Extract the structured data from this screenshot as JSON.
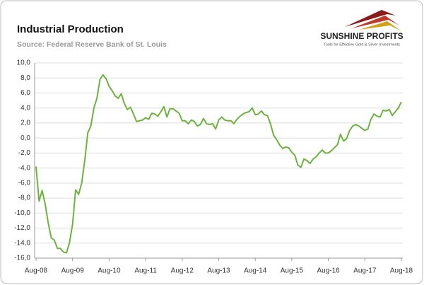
{
  "chart_data": {
    "type": "line",
    "title": "Industrial Production",
    "subtitle": "Source: Federal Reserve Bank of St. Louis",
    "categories": [
      "Aug-08",
      null,
      null,
      null,
      null,
      null,
      null,
      null,
      null,
      null,
      null,
      null,
      "Aug-09",
      null,
      null,
      null,
      null,
      null,
      null,
      null,
      null,
      null,
      null,
      null,
      "Aug-10",
      null,
      null,
      null,
      null,
      null,
      null,
      null,
      null,
      null,
      null,
      null,
      "Aug-11",
      null,
      null,
      null,
      null,
      null,
      null,
      null,
      null,
      null,
      null,
      null,
      "Aug-12",
      null,
      null,
      null,
      null,
      null,
      null,
      null,
      null,
      null,
      null,
      null,
      "Aug-13",
      null,
      null,
      null,
      null,
      null,
      null,
      null,
      null,
      null,
      null,
      null,
      "Aug-14",
      null,
      null,
      null,
      null,
      null,
      null,
      null,
      null,
      null,
      null,
      null,
      "Aug-15",
      null,
      null,
      null,
      null,
      null,
      null,
      null,
      null,
      null,
      null,
      null,
      "Aug-16",
      null,
      null,
      null,
      null,
      null,
      null,
      null,
      null,
      null,
      null,
      null,
      "Aug-17",
      null,
      null,
      null,
      null,
      null,
      null,
      null,
      null,
      null,
      null,
      null,
      "Aug-18"
    ],
    "series": [
      {
        "color": "#6cb33e",
        "values": [
          -3.8,
          -8.4,
          -7.0,
          -8.8,
          -11.3,
          -13.3,
          -13.6,
          -14.7,
          -14.7,
          -15.2,
          -15.3,
          -13.9,
          -11.5,
          -6.9,
          -7.5,
          -6.0,
          -3.0,
          0.7,
          1.6,
          4.0,
          5.3,
          7.8,
          8.4,
          7.9,
          6.9,
          6.3,
          5.6,
          5.3,
          5.9,
          4.6,
          3.8,
          4.1,
          3.2,
          2.2,
          2.3,
          2.4,
          2.7,
          2.5,
          3.3,
          3.2,
          2.9,
          3.5,
          4.2,
          2.8,
          3.9,
          3.9,
          3.6,
          3.3,
          2.3,
          2.3,
          1.9,
          2.4,
          2.2,
          1.6,
          1.8,
          2.6,
          1.9,
          1.8,
          1.9,
          1.2,
          2.4,
          2.8,
          2.4,
          2.3,
          2.3,
          1.9,
          2.5,
          2.9,
          3.2,
          3.4,
          3.5,
          4.0,
          3.1,
          3.2,
          3.6,
          3.1,
          3.0,
          1.9,
          0.4,
          -0.2,
          -0.9,
          -1.4,
          -1.2,
          -1.3,
          -1.9,
          -2.3,
          -3.6,
          -3.9,
          -2.8,
          -3.0,
          -3.4,
          -2.8,
          -2.5,
          -2.0,
          -1.6,
          -2.0,
          -2.0,
          -1.7,
          -1.3,
          -0.9,
          0.5,
          -0.4,
          -0.1,
          1.0,
          1.6,
          1.8,
          1.6,
          1.3,
          1.0,
          1.2,
          2.5,
          3.2,
          2.9,
          2.8,
          3.7,
          3.6,
          3.8,
          3.0,
          3.5,
          4.0,
          4.8
        ]
      }
    ],
    "ylim": [
      -16,
      10
    ],
    "yticks": [
      {
        "value": 10,
        "label": "10,0"
      },
      {
        "value": 8,
        "label": "8,0"
      },
      {
        "value": 6,
        "label": "6,0"
      },
      {
        "value": 4,
        "label": "4,0"
      },
      {
        "value": 2,
        "label": "2,0"
      },
      {
        "value": 0,
        "label": "0,0"
      },
      {
        "value": -2,
        "label": "-2,0"
      },
      {
        "value": -4,
        "label": "-4,0"
      },
      {
        "value": -6,
        "label": "-6,0"
      },
      {
        "value": -8,
        "label": "-8,0"
      },
      {
        "value": -10,
        "label": "-10,0"
      },
      {
        "value": -12,
        "label": "-12,0"
      },
      {
        "value": -14,
        "label": "-14,0"
      },
      {
        "value": -16,
        "label": "-16,0"
      }
    ],
    "grid": true
  },
  "logo": {
    "name": "SUNSHINE PROFITS",
    "tagline": "Tools for Effective Gold & Silver Investments"
  }
}
